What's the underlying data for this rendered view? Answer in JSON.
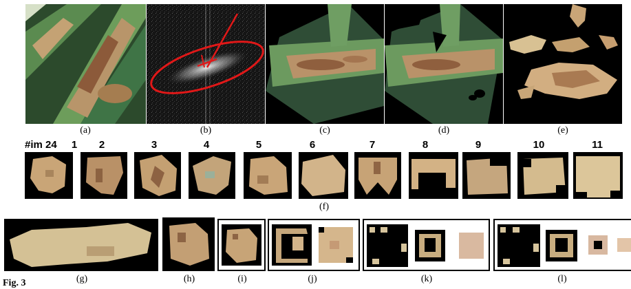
{
  "top_row_captions": [
    "(a)",
    "(b)",
    "(c)",
    "(d)",
    "(e)"
  ],
  "header_label": "#im 24",
  "crop_numbers": [
    "1",
    "2",
    "3",
    "4",
    "5",
    "6",
    "7",
    "8",
    "9",
    "10",
    "11"
  ],
  "mid_caption": "(f)",
  "bottom_captions": [
    "(g)",
    "(h)",
    "(i)",
    "(j)",
    "(k)",
    "(l)"
  ],
  "figure_caption_start": "Fig. 3",
  "colors": {
    "leaf_green": "#4f8c4a",
    "lesion_tan": "#c9a577",
    "lesion_brown": "#8a5a3a",
    "fft_ellipse": "#e01818",
    "background": "#000000"
  }
}
